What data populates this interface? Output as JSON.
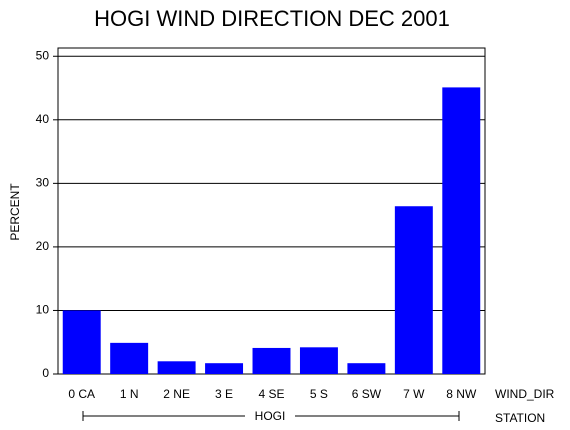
{
  "chart_data": {
    "type": "bar",
    "title": "HOGI WIND DIRECTION DEC 2001",
    "y_label": "PERCENT",
    "x_label": "WIND_DIR",
    "group_label": "HOGI",
    "group_axis_label": "STATION",
    "categories": [
      "0 CA",
      "1 N",
      "2 NE",
      "3 E",
      "4 SE",
      "5 S",
      "6 SW",
      "7 W",
      "8 NW"
    ],
    "values": [
      10.0,
      4.9,
      2.0,
      1.7,
      4.1,
      4.2,
      1.7,
      26.4,
      45.1
    ],
    "color": "#0000ff",
    "ylim": [
      0,
      51.3
    ],
    "yticks": [
      0,
      10,
      20,
      30,
      40,
      50
    ],
    "grid": true
  }
}
